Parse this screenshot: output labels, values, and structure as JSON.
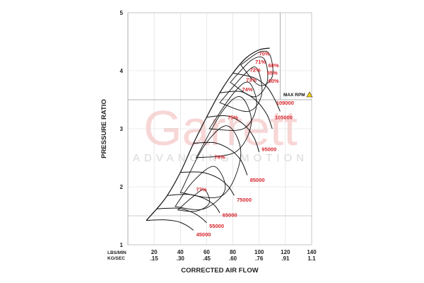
{
  "watermark": {
    "brand": "Garrett",
    "tagline": "ADVANCING MOTION"
  },
  "chart_data": {
    "type": "line",
    "title": "",
    "xlabel": "CORRECTED AIR FLOW",
    "ylabel": "PRESSURE RATIO",
    "x_unit_primary": "LBS/MIN",
    "x_unit_secondary": "KG/SEC",
    "xlim": [
      0,
      140
    ],
    "ylim": [
      1,
      5
    ],
    "x_ticks": [
      20,
      40,
      60,
      80,
      100,
      120,
      140
    ],
    "x_ticks_kgsec": [
      ".15",
      ".30",
      ".45",
      ".60",
      ".76",
      ".91",
      "1.1"
    ],
    "y_ticks": [
      1,
      2,
      3,
      4,
      5
    ],
    "grid": true,
    "max_rpm": {
      "label": "MAX RPM",
      "pressure_ratio": 3.5,
      "airflow": 116
    },
    "surge_line": [
      [
        14,
        1.42
      ],
      [
        22,
        1.62
      ],
      [
        30,
        1.85
      ],
      [
        40,
        2.25
      ],
      [
        50,
        2.75
      ],
      [
        60,
        3.2
      ],
      [
        70,
        3.62
      ],
      [
        80,
        3.96
      ],
      [
        90,
        4.22
      ],
      [
        100,
        4.36
      ],
      [
        108,
        4.39
      ]
    ],
    "speed_lines": [
      {
        "name": "45000",
        "points": [
          [
            14,
            1.42
          ],
          [
            28,
            1.43
          ],
          [
            38,
            1.4
          ],
          [
            45,
            1.33
          ],
          [
            50,
            1.25
          ]
        ]
      },
      {
        "name": "55000",
        "points": [
          [
            22,
            1.62
          ],
          [
            38,
            1.63
          ],
          [
            48,
            1.57
          ],
          [
            55,
            1.48
          ],
          [
            60,
            1.38
          ]
        ]
      },
      {
        "name": "65000",
        "points": [
          [
            30,
            1.85
          ],
          [
            46,
            1.87
          ],
          [
            58,
            1.8
          ],
          [
            66,
            1.68
          ],
          [
            70,
            1.55
          ]
        ]
      },
      {
        "name": "75000",
        "points": [
          [
            40,
            2.25
          ],
          [
            56,
            2.25
          ],
          [
            68,
            2.16
          ],
          [
            76,
            2.02
          ],
          [
            81,
            1.85
          ]
        ]
      },
      {
        "name": "85000",
        "points": [
          [
            50,
            2.75
          ],
          [
            66,
            2.76
          ],
          [
            78,
            2.64
          ],
          [
            86,
            2.46
          ],
          [
            91,
            2.2
          ]
        ]
      },
      {
        "name": "95000",
        "points": [
          [
            60,
            3.2
          ],
          [
            76,
            3.22
          ],
          [
            88,
            3.08
          ],
          [
            96,
            2.85
          ],
          [
            100,
            2.6
          ]
        ]
      },
      {
        "name": "105000",
        "points": [
          [
            70,
            3.62
          ],
          [
            86,
            3.64
          ],
          [
            98,
            3.48
          ],
          [
            106,
            3.24
          ],
          [
            110,
            3.0
          ]
        ]
      },
      {
        "name": "109000",
        "points": [
          [
            80,
            3.96
          ],
          [
            96,
            3.88
          ],
          [
            106,
            3.72
          ],
          [
            112,
            3.5
          ],
          [
            116,
            3.3
          ]
        ]
      }
    ],
    "speed_label_positions": [
      {
        "name": "45000",
        "x": 52,
        "y": 1.18
      },
      {
        "name": "55000",
        "x": 62,
        "y": 1.33
      },
      {
        "name": "65000",
        "x": 72,
        "y": 1.52
      },
      {
        "name": "75000",
        "x": 83,
        "y": 1.78
      },
      {
        "name": "85000",
        "x": 93,
        "y": 2.12
      },
      {
        "name": "95000",
        "x": 102,
        "y": 2.65
      },
      {
        "name": "105000",
        "x": 112,
        "y": 3.2
      },
      {
        "name": "109000",
        "x": 113,
        "y": 3.45
      }
    ],
    "efficiency_islands": [
      {
        "name": "77%",
        "points": [
          [
            38,
            1.6
          ],
          [
            48,
            1.8
          ],
          [
            58,
            1.95
          ],
          [
            62,
            1.72
          ],
          [
            52,
            1.58
          ],
          [
            38,
            1.6
          ]
        ],
        "label_x": 56,
        "label_y": 1.96
      },
      {
        "name": "76%",
        "points": [
          [
            36,
            1.66
          ],
          [
            50,
            2.1
          ],
          [
            66,
            2.35
          ],
          [
            74,
            1.95
          ],
          [
            58,
            1.62
          ],
          [
            36,
            1.66
          ]
        ],
        "label_x": 70,
        "label_y": 2.52
      },
      {
        "name": "75%",
        "points": [
          [
            40,
            1.9
          ],
          [
            58,
            2.7
          ],
          [
            76,
            3.05
          ],
          [
            86,
            2.55
          ],
          [
            72,
            1.85
          ],
          [
            40,
            1.9
          ]
        ],
        "label_x": 80,
        "label_y": 3.2
      },
      {
        "name": "74%",
        "points": [
          [
            52,
            2.5
          ],
          [
            72,
            3.3
          ],
          [
            86,
            3.55
          ],
          [
            94,
            3.1
          ],
          [
            82,
            2.6
          ],
          [
            52,
            2.5
          ]
        ],
        "label_x": 91,
        "label_y": 3.68
      },
      {
        "name": "73%",
        "points": [
          [
            62,
            3.0
          ],
          [
            80,
            3.6
          ],
          [
            92,
            3.8
          ],
          [
            98,
            3.4
          ],
          [
            88,
            3.0
          ],
          [
            62,
            3.0
          ]
        ],
        "label_x": 94,
        "label_y": 3.85
      },
      {
        "name": "72%",
        "points": [
          [
            70,
            3.45
          ],
          [
            88,
            3.92
          ],
          [
            98,
            4.05
          ],
          [
            102,
            3.6
          ],
          [
            92,
            3.3
          ],
          [
            70,
            3.45
          ]
        ],
        "label_x": 97,
        "label_y": 4.02
      },
      {
        "name": "71%",
        "points": [
          [
            78,
            3.8
          ],
          [
            94,
            4.18
          ],
          [
            104,
            4.2
          ],
          [
            106,
            3.8
          ],
          [
            96,
            3.55
          ],
          [
            78,
            3.8
          ]
        ],
        "label_x": 101,
        "label_y": 4.16
      },
      {
        "name": "70%",
        "points": [
          [
            86,
            4.1
          ],
          [
            100,
            4.32
          ],
          [
            108,
            4.28
          ],
          [
            110,
            3.9
          ],
          [
            100,
            3.75
          ],
          [
            86,
            4.1
          ]
        ],
        "label_x": 104,
        "label_y": 4.3
      }
    ],
    "efficiency_extra_labels": [
      {
        "name": "68%",
        "x": 111,
        "y": 4.1
      },
      {
        "name": "65%",
        "x": 110,
        "y": 3.97
      },
      {
        "name": "60%",
        "x": 111,
        "y": 3.83
      }
    ]
  }
}
